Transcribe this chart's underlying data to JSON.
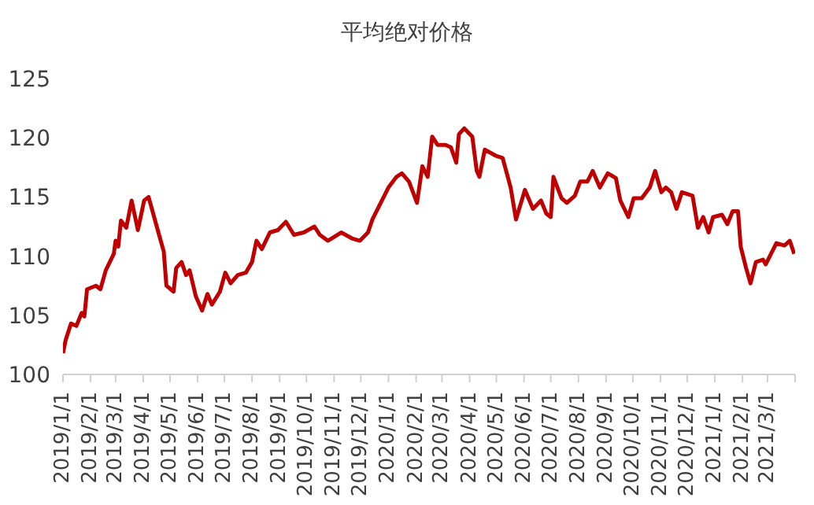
{
  "chart_data": {
    "type": "line",
    "title": "平均绝对价格",
    "x": [
      "2019-01-01",
      "2019-01-04",
      "2019-01-10",
      "2019-01-16",
      "2019-01-22",
      "2019-01-25",
      "2019-01-28",
      "2019-02-07",
      "2019-02-12",
      "2019-02-18",
      "2019-02-27",
      "2019-03-01",
      "2019-03-04",
      "2019-03-07",
      "2019-03-13",
      "2019-03-19",
      "2019-03-26",
      "2019-04-02",
      "2019-04-07",
      "2019-04-18",
      "2019-04-24",
      "2019-04-27",
      "2019-05-05",
      "2019-05-08",
      "2019-05-14",
      "2019-05-19",
      "2019-05-23",
      "2019-05-30",
      "2019-06-06",
      "2019-06-12",
      "2019-06-17",
      "2019-06-26",
      "2019-07-02",
      "2019-07-08",
      "2019-07-16",
      "2019-07-25",
      "2019-08-01",
      "2019-08-06",
      "2019-08-12",
      "2019-08-21",
      "2019-08-30",
      "2019-09-08",
      "2019-09-17",
      "2019-09-28",
      "2019-10-10",
      "2019-10-16",
      "2019-10-25",
      "2019-11-09",
      "2019-11-21",
      "2019-11-30",
      "2019-12-09",
      "2019-12-14",
      "2019-12-20",
      "2019-12-26",
      "2020-01-01",
      "2020-01-10",
      "2020-01-16",
      "2020-01-24",
      "2020-02-02",
      "2020-02-08",
      "2020-02-14",
      "2020-02-19",
      "2020-02-25",
      "2020-03-05",
      "2020-03-11",
      "2020-03-17",
      "2020-03-20",
      "2020-03-26",
      "2020-04-04",
      "2020-04-09",
      "2020-04-12",
      "2020-04-18",
      "2020-04-30",
      "2020-05-08",
      "2020-05-17",
      "2020-05-23",
      "2020-06-02",
      "2020-06-11",
      "2020-06-20",
      "2020-06-26",
      "2020-07-01",
      "2020-07-04",
      "2020-07-13",
      "2020-07-19",
      "2020-07-28",
      "2020-08-03",
      "2020-08-11",
      "2020-08-17",
      "2020-08-25",
      "2020-09-03",
      "2020-09-12",
      "2020-09-17",
      "2020-09-26",
      "2020-10-02",
      "2020-10-11",
      "2020-10-20",
      "2020-10-26",
      "2020-11-02",
      "2020-11-07",
      "2020-11-13",
      "2020-11-19",
      "2020-11-25",
      "2020-12-07",
      "2020-12-13",
      "2020-12-19",
      "2020-12-25",
      "2020-12-30",
      "2021-01-09",
      "2021-01-15",
      "2021-01-21",
      "2021-01-27",
      "2021-01-30",
      "2021-02-05",
      "2021-02-10",
      "2021-02-16",
      "2021-02-24",
      "2021-02-27",
      "2021-03-11",
      "2021-03-20",
      "2021-03-26",
      "2021-03-31"
    ],
    "series": [
      {
        "color": "#c00000",
        "values": [
          101.8,
          102.9,
          104.3,
          104.1,
          105.2,
          104.9,
          107.2,
          107.5,
          107.2,
          108.8,
          110.2,
          111.3,
          110.8,
          113.0,
          112.4,
          114.7,
          112.2,
          114.7,
          115.0,
          112.0,
          110.4,
          107.5,
          107.0,
          109.0,
          109.5,
          108.4,
          108.8,
          106.6,
          105.4,
          106.8,
          105.9,
          107.0,
          108.6,
          107.7,
          108.4,
          108.6,
          109.5,
          111.3,
          110.6,
          112.0,
          112.2,
          112.9,
          111.8,
          112.0,
          112.5,
          111.8,
          111.3,
          112.0,
          111.5,
          111.3,
          112.0,
          113.1,
          114.0,
          114.9,
          115.8,
          116.7,
          117.0,
          116.3,
          114.5,
          117.6,
          116.7,
          120.1,
          119.4,
          119.4,
          119.2,
          117.9,
          120.3,
          120.8,
          120.1,
          117.2,
          116.7,
          119.0,
          118.5,
          118.3,
          115.8,
          113.1,
          115.6,
          114.0,
          114.7,
          113.6,
          113.3,
          116.7,
          114.9,
          114.5,
          115.1,
          116.3,
          116.3,
          117.2,
          115.8,
          117.0,
          116.6,
          114.7,
          113.3,
          114.9,
          114.9,
          115.8,
          117.2,
          115.4,
          115.8,
          115.4,
          114.0,
          115.4,
          115.1,
          112.4,
          113.3,
          112.0,
          113.3,
          113.5,
          112.7,
          113.8,
          113.8,
          110.8,
          109.0,
          107.7,
          109.5,
          109.7,
          109.3,
          111.1,
          110.9,
          111.3,
          110.2
        ]
      }
    ],
    "xlim": [
      "2019-01-01",
      "2021-04-01"
    ],
    "xticks": [
      {
        "value": "2019-01-01",
        "label": "2019/1/1"
      },
      {
        "value": "2019-02-01",
        "label": "2019/2/1"
      },
      {
        "value": "2019-03-01",
        "label": "2019/3/1"
      },
      {
        "value": "2019-04-01",
        "label": "2019/4/1"
      },
      {
        "value": "2019-05-01",
        "label": "2019/5/1"
      },
      {
        "value": "2019-06-01",
        "label": "2019/6/1"
      },
      {
        "value": "2019-07-01",
        "label": "2019/7/1"
      },
      {
        "value": "2019-08-01",
        "label": "2019/8/1"
      },
      {
        "value": "2019-09-01",
        "label": "2019/9/1"
      },
      {
        "value": "2019-10-01",
        "label": "2019/10/1"
      },
      {
        "value": "2019-11-01",
        "label": "2019/11/1"
      },
      {
        "value": "2019-12-01",
        "label": "2019/12/1"
      },
      {
        "value": "2020-01-01",
        "label": "2020/1/1"
      },
      {
        "value": "2020-02-01",
        "label": "2020/2/1"
      },
      {
        "value": "2020-03-01",
        "label": "2020/3/1"
      },
      {
        "value": "2020-04-01",
        "label": "2020/4/1"
      },
      {
        "value": "2020-05-01",
        "label": "2020/5/1"
      },
      {
        "value": "2020-06-01",
        "label": "2020/6/1"
      },
      {
        "value": "2020-07-01",
        "label": "2020/7/1"
      },
      {
        "value": "2020-08-01",
        "label": "2020/8/1"
      },
      {
        "value": "2020-09-01",
        "label": "2020/9/1"
      },
      {
        "value": "2020-10-01",
        "label": "2020/10/1"
      },
      {
        "value": "2020-11-01",
        "label": "2020/11/1"
      },
      {
        "value": "2020-12-01",
        "label": "2020/12/1"
      },
      {
        "value": "2021-01-01",
        "label": "2021/1/1"
      },
      {
        "value": "2021-02-01",
        "label": "2021/2/1"
      },
      {
        "value": "2021-03-01",
        "label": "2021/3/1"
      },
      {
        "value": "2021-04-01",
        "label": null
      }
    ],
    "ylim": [
      100,
      125
    ],
    "yticks": [
      100,
      105,
      110,
      115,
      120,
      125
    ],
    "grid": false,
    "legend": false,
    "marker": "none",
    "line_style": "solid"
  }
}
